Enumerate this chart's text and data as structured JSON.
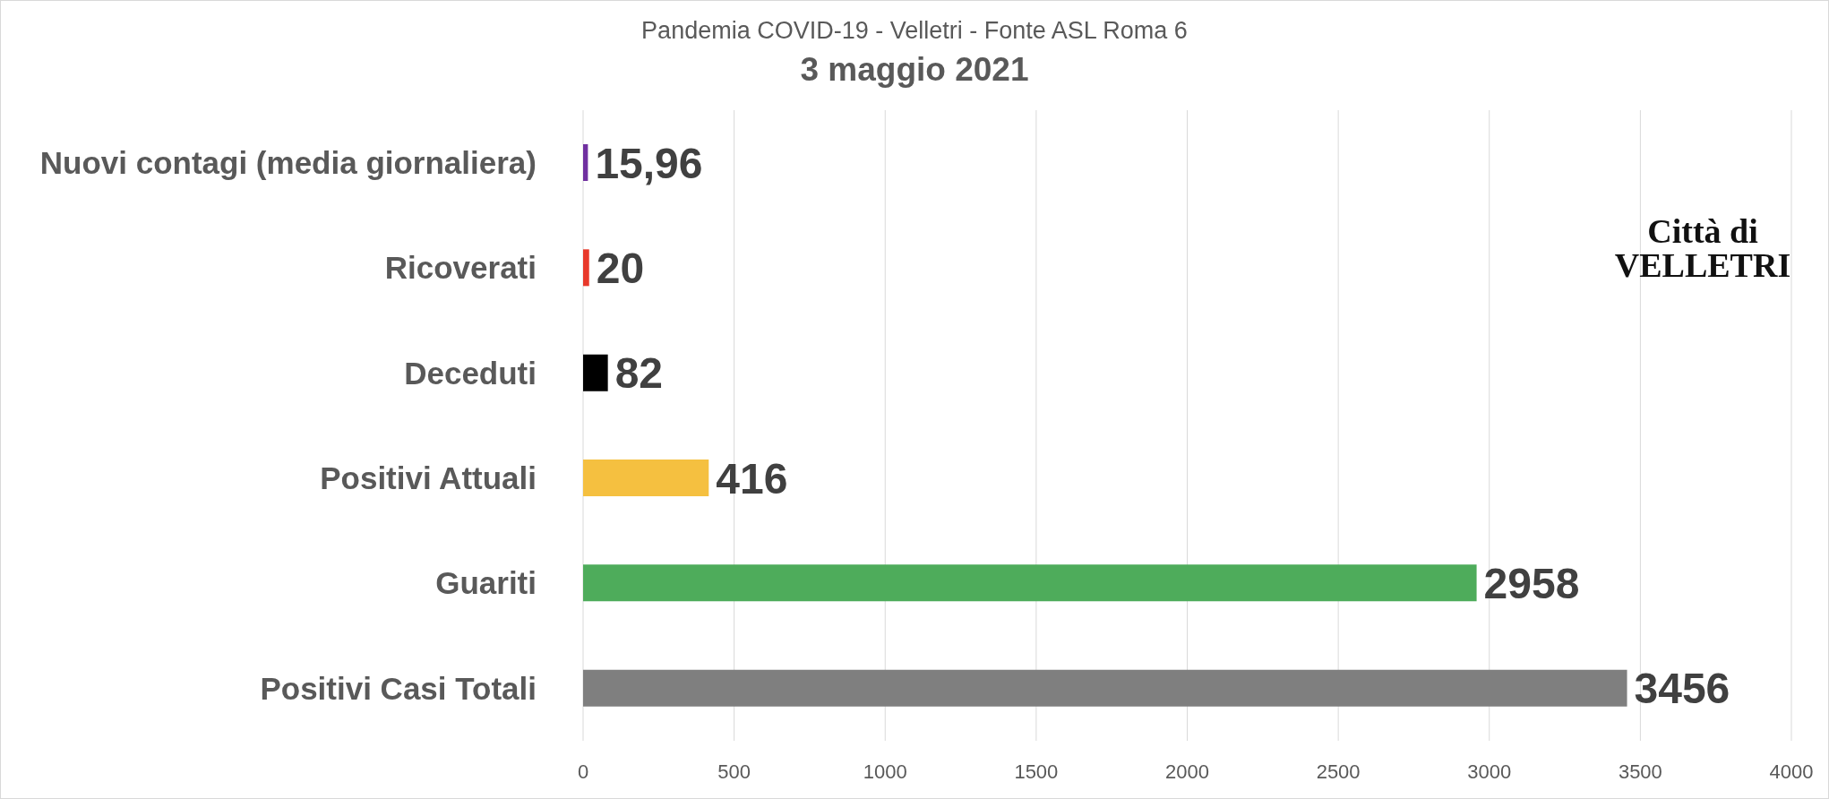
{
  "chart_data": {
    "type": "bar",
    "orientation": "horizontal",
    "title": "Pandemia COVID-19 - Velletri - Fonte ASL Roma 6",
    "subtitle": "3 maggio 2021",
    "categories": [
      "Nuovi contagi (media giornaliera)",
      "Ricoverati",
      "Deceduti",
      "Positivi Attuali",
      "Guariti",
      "Positivi Casi Totali"
    ],
    "values": [
      15.96,
      20,
      82,
      416,
      2958,
      3456
    ],
    "colors": [
      "#7030a0",
      "#e8392b",
      "#000000",
      "#f5c040",
      "#4eac5b",
      "#7f7f7f"
    ],
    "value_labels": [
      "15,96",
      "20",
      "82",
      "416",
      "2958",
      "3456"
    ],
    "xlim": [
      0,
      4000
    ],
    "xticks": [
      0,
      500,
      1000,
      1500,
      2000,
      2500,
      3000,
      3500,
      4000
    ],
    "grid": "x",
    "annotations": [
      "Città di",
      "VELLETRI"
    ]
  }
}
